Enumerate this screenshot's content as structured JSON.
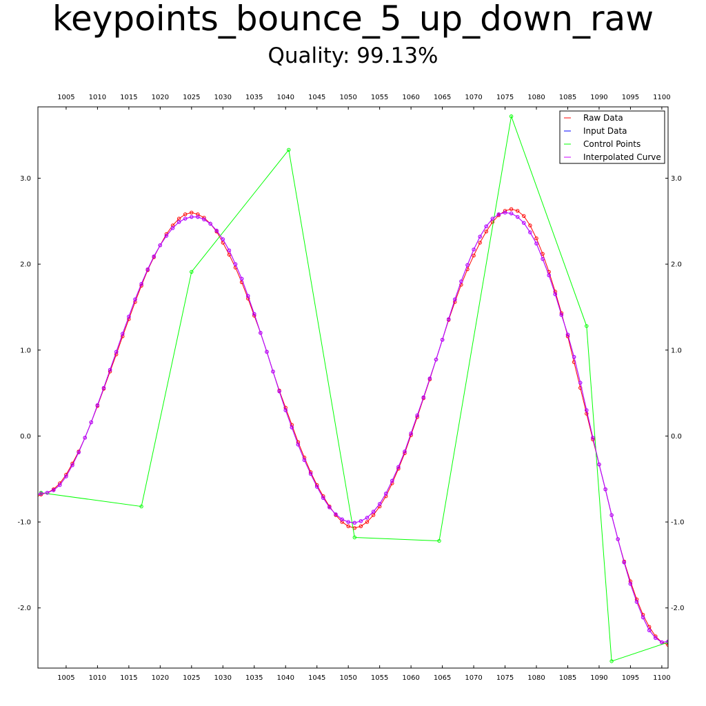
{
  "chart_data": {
    "type": "line",
    "title": "keypoints_bounce_5_up_down_raw",
    "subtitle": "Quality: 99.13%",
    "xlim": [
      1000.5,
      1101.0
    ],
    "ylim": [
      -2.7,
      3.83
    ],
    "x_ticks": [
      1005,
      1010,
      1015,
      1020,
      1025,
      1030,
      1035,
      1040,
      1045,
      1050,
      1055,
      1060,
      1065,
      1070,
      1075,
      1080,
      1085,
      1090,
      1095,
      1100
    ],
    "y_ticks": [
      -2.0,
      -1.0,
      0.0,
      1.0,
      2.0,
      3.0
    ],
    "y_tick_labels": [
      "-2.0",
      "-1.0",
      "0.0",
      "1.0",
      "2.0",
      "3.0"
    ],
    "grid": false,
    "legend_position": "top-right",
    "legend": [
      "Raw Data",
      "Input Data",
      "Control Points",
      "Interpolated Curve"
    ],
    "series": [
      {
        "name": "Raw Data",
        "color": "#ff0000",
        "marker": "circle",
        "x": [
          1000,
          1001,
          1002,
          1003,
          1004,
          1005,
          1006,
          1007,
          1008,
          1009,
          1010,
          1011,
          1012,
          1013,
          1014,
          1015,
          1016,
          1017,
          1018,
          1019,
          1020,
          1021,
          1022,
          1023,
          1024,
          1025,
          1026,
          1027,
          1028,
          1029,
          1030,
          1031,
          1032,
          1033,
          1034,
          1035,
          1036,
          1037,
          1038,
          1039,
          1040,
          1041,
          1042,
          1043,
          1044,
          1045,
          1046,
          1047,
          1048,
          1049,
          1050,
          1051,
          1052,
          1053,
          1054,
          1055,
          1056,
          1057,
          1058,
          1059,
          1060,
          1061,
          1062,
          1063,
          1064,
          1065,
          1066,
          1067,
          1068,
          1069,
          1070,
          1071,
          1072,
          1073,
          1074,
          1075,
          1076,
          1077,
          1078,
          1079,
          1080,
          1081,
          1082,
          1083,
          1084,
          1085,
          1086,
          1087,
          1088,
          1089,
          1090,
          1091,
          1092,
          1093,
          1094,
          1095,
          1096,
          1097,
          1098,
          1099,
          1100,
          1101
        ],
        "y": [
          -0.72,
          -0.68,
          -0.66,
          -0.62,
          -0.55,
          -0.45,
          -0.32,
          -0.18,
          -0.02,
          0.16,
          0.35,
          0.55,
          0.75,
          0.95,
          1.16,
          1.36,
          1.56,
          1.75,
          1.93,
          2.08,
          2.22,
          2.35,
          2.45,
          2.53,
          2.58,
          2.6,
          2.58,
          2.54,
          2.47,
          2.38,
          2.25,
          2.11,
          1.96,
          1.79,
          1.6,
          1.4,
          1.2,
          0.98,
          0.75,
          0.53,
          0.33,
          0.13,
          -0.07,
          -0.25,
          -0.42,
          -0.57,
          -0.7,
          -0.82,
          -0.92,
          -1.0,
          -1.05,
          -1.07,
          -1.05,
          -1.0,
          -0.92,
          -0.82,
          -0.7,
          -0.55,
          -0.38,
          -0.2,
          0.01,
          0.22,
          0.44,
          0.66,
          0.89,
          1.12,
          1.35,
          1.56,
          1.76,
          1.94,
          2.1,
          2.25,
          2.38,
          2.49,
          2.57,
          2.62,
          2.64,
          2.62,
          2.56,
          2.45,
          2.3,
          2.12,
          1.91,
          1.68,
          1.43,
          1.16,
          0.86,
          0.56,
          0.26,
          -0.04,
          -0.33,
          -0.62,
          -0.92,
          -1.2,
          -1.46,
          -1.69,
          -1.9,
          -2.08,
          -2.22,
          -2.33,
          -2.4,
          -2.43
        ]
      },
      {
        "name": "Input Data",
        "color": "#0000ff",
        "marker": "circle",
        "x": [
          1000,
          1001,
          1002,
          1003,
          1004,
          1005,
          1006,
          1007,
          1008,
          1009,
          1010,
          1011,
          1012,
          1013,
          1014,
          1015,
          1016,
          1017,
          1018,
          1019,
          1020,
          1021,
          1022,
          1023,
          1024,
          1025,
          1026,
          1027,
          1028,
          1029,
          1030,
          1031,
          1032,
          1033,
          1034,
          1035,
          1036,
          1037,
          1038,
          1039,
          1040,
          1041,
          1042,
          1043,
          1044,
          1045,
          1046,
          1047,
          1048,
          1049,
          1050,
          1051,
          1052,
          1053,
          1054,
          1055,
          1056,
          1057,
          1058,
          1059,
          1060,
          1061,
          1062,
          1063,
          1064,
          1065,
          1066,
          1067,
          1068,
          1069,
          1070,
          1071,
          1072,
          1073,
          1074,
          1075,
          1076,
          1077,
          1078,
          1079,
          1080,
          1081,
          1082,
          1083,
          1084,
          1085,
          1086,
          1087,
          1088,
          1089,
          1090,
          1091,
          1092,
          1093,
          1094,
          1095,
          1096,
          1097,
          1098,
          1099,
          1100,
          1101
        ],
        "y": [
          -0.69,
          -0.67,
          -0.66,
          -0.63,
          -0.57,
          -0.47,
          -0.34,
          -0.19,
          -0.02,
          0.16,
          0.36,
          0.56,
          0.77,
          0.98,
          1.19,
          1.39,
          1.59,
          1.77,
          1.94,
          2.09,
          2.22,
          2.33,
          2.42,
          2.49,
          2.53,
          2.55,
          2.55,
          2.52,
          2.47,
          2.39,
          2.29,
          2.16,
          2.0,
          1.83,
          1.63,
          1.42,
          1.2,
          0.98,
          0.75,
          0.52,
          0.3,
          0.1,
          -0.1,
          -0.28,
          -0.44,
          -0.59,
          -0.72,
          -0.83,
          -0.91,
          -0.97,
          -1.0,
          -1.01,
          -0.99,
          -0.95,
          -0.88,
          -0.79,
          -0.67,
          -0.52,
          -0.36,
          -0.18,
          0.03,
          0.24,
          0.45,
          0.67,
          0.89,
          1.12,
          1.36,
          1.59,
          1.8,
          1.99,
          2.17,
          2.32,
          2.44,
          2.53,
          2.58,
          2.6,
          2.59,
          2.55,
          2.48,
          2.37,
          2.24,
          2.06,
          1.87,
          1.65,
          1.41,
          1.18,
          0.92,
          0.62,
          0.3,
          -0.02,
          -0.33,
          -0.62,
          -0.92,
          -1.2,
          -1.47,
          -1.72,
          -1.93,
          -2.11,
          -2.26,
          -2.35,
          -2.4,
          -2.39
        ]
      },
      {
        "name": "Control Points",
        "color": "#00ff00",
        "marker": "circle",
        "x": [
          1001,
          1017,
          1025,
          1040.5,
          1051,
          1064.5,
          1076,
          1088,
          1092,
          1101
        ],
        "y": [
          -0.66,
          -0.82,
          1.91,
          3.33,
          -1.18,
          -1.22,
          3.72,
          1.28,
          -2.62,
          -2.4
        ]
      },
      {
        "name": "Interpolated Curve",
        "color": "#cc00ff",
        "marker": "circle",
        "x": [
          1000,
          1001,
          1002,
          1003,
          1004,
          1005,
          1006,
          1007,
          1008,
          1009,
          1010,
          1011,
          1012,
          1013,
          1014,
          1015,
          1016,
          1017,
          1018,
          1019,
          1020,
          1021,
          1022,
          1023,
          1024,
          1025,
          1026,
          1027,
          1028,
          1029,
          1030,
          1031,
          1032,
          1033,
          1034,
          1035,
          1036,
          1037,
          1038,
          1039,
          1040,
          1041,
          1042,
          1043,
          1044,
          1045,
          1046,
          1047,
          1048,
          1049,
          1050,
          1051,
          1052,
          1053,
          1054,
          1055,
          1056,
          1057,
          1058,
          1059,
          1060,
          1061,
          1062,
          1063,
          1064,
          1065,
          1066,
          1067,
          1068,
          1069,
          1070,
          1071,
          1072,
          1073,
          1074,
          1075,
          1076,
          1077,
          1078,
          1079,
          1080,
          1081,
          1082,
          1083,
          1084,
          1085,
          1086,
          1087,
          1088,
          1089,
          1090,
          1091,
          1092,
          1093,
          1094,
          1095,
          1096,
          1097,
          1098,
          1099,
          1100,
          1101
        ],
        "y": [
          -0.69,
          -0.67,
          -0.66,
          -0.63,
          -0.57,
          -0.47,
          -0.34,
          -0.19,
          -0.02,
          0.16,
          0.36,
          0.56,
          0.77,
          0.98,
          1.19,
          1.39,
          1.59,
          1.77,
          1.94,
          2.09,
          2.22,
          2.33,
          2.42,
          2.49,
          2.53,
          2.55,
          2.55,
          2.52,
          2.47,
          2.39,
          2.29,
          2.16,
          2.0,
          1.83,
          1.63,
          1.42,
          1.2,
          0.98,
          0.75,
          0.52,
          0.3,
          0.1,
          -0.1,
          -0.28,
          -0.44,
          -0.59,
          -0.72,
          -0.83,
          -0.91,
          -0.97,
          -1.0,
          -1.01,
          -0.99,
          -0.95,
          -0.88,
          -0.79,
          -0.67,
          -0.52,
          -0.36,
          -0.18,
          0.03,
          0.24,
          0.45,
          0.67,
          0.89,
          1.12,
          1.36,
          1.59,
          1.8,
          1.99,
          2.17,
          2.32,
          2.44,
          2.53,
          2.58,
          2.6,
          2.59,
          2.55,
          2.48,
          2.37,
          2.24,
          2.06,
          1.87,
          1.65,
          1.41,
          1.18,
          0.92,
          0.62,
          0.3,
          -0.02,
          -0.33,
          -0.62,
          -0.92,
          -1.2,
          -1.47,
          -1.72,
          -1.93,
          -2.11,
          -2.26,
          -2.35,
          -2.4,
          -2.39
        ]
      }
    ]
  }
}
